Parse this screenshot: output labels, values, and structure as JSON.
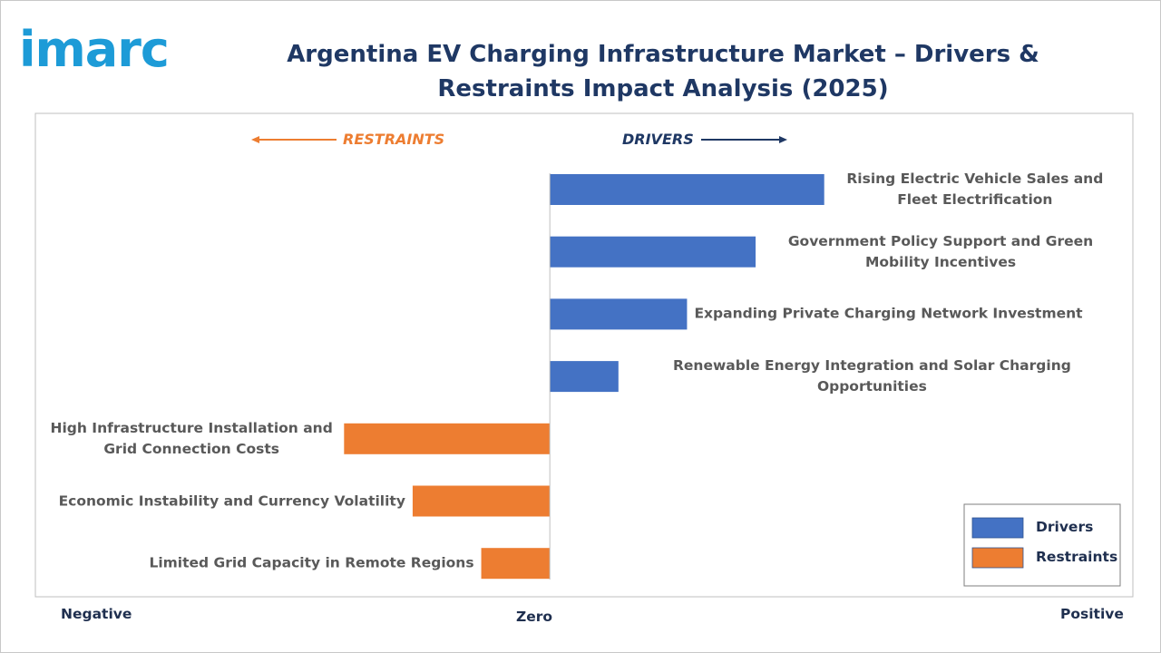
{
  "logo": "imarc",
  "chart_data": {
    "type": "bar",
    "orientation": "horizontal",
    "title": "Argentina EV Charging Infrastructure Market – Drivers & Restraints Impact Analysis (2025)",
    "restraints_label": "RESTRAINTS",
    "drivers_label": "DRIVERS",
    "x_left_label": "Negative",
    "x_zero_label": "Zero",
    "x_right_label": "Positive",
    "xlim": [
      -7.5,
      8.5
    ],
    "categories": [
      "Rising Electric Vehicle Sales and Fleet Electrification",
      "Government Policy Support and Green Mobility Incentives",
      "Expanding Private Charging Network Investment",
      "Renewable Energy Integration and Solar Charging Opportunities",
      "High Infrastructure Installation and Grid Connection Costs",
      "Economic Instability and Currency Volatility",
      "Limited Grid Capacity in Remote Regions"
    ],
    "series": [
      {
        "name": "Drivers",
        "color": "#4472c4",
        "values": [
          4,
          3,
          2,
          1,
          null,
          null,
          null
        ]
      },
      {
        "name": "Restraints",
        "color": "#ed7d31",
        "values": [
          null,
          null,
          null,
          null,
          -3,
          -2,
          -1
        ]
      }
    ],
    "legend": "bottom-right"
  }
}
